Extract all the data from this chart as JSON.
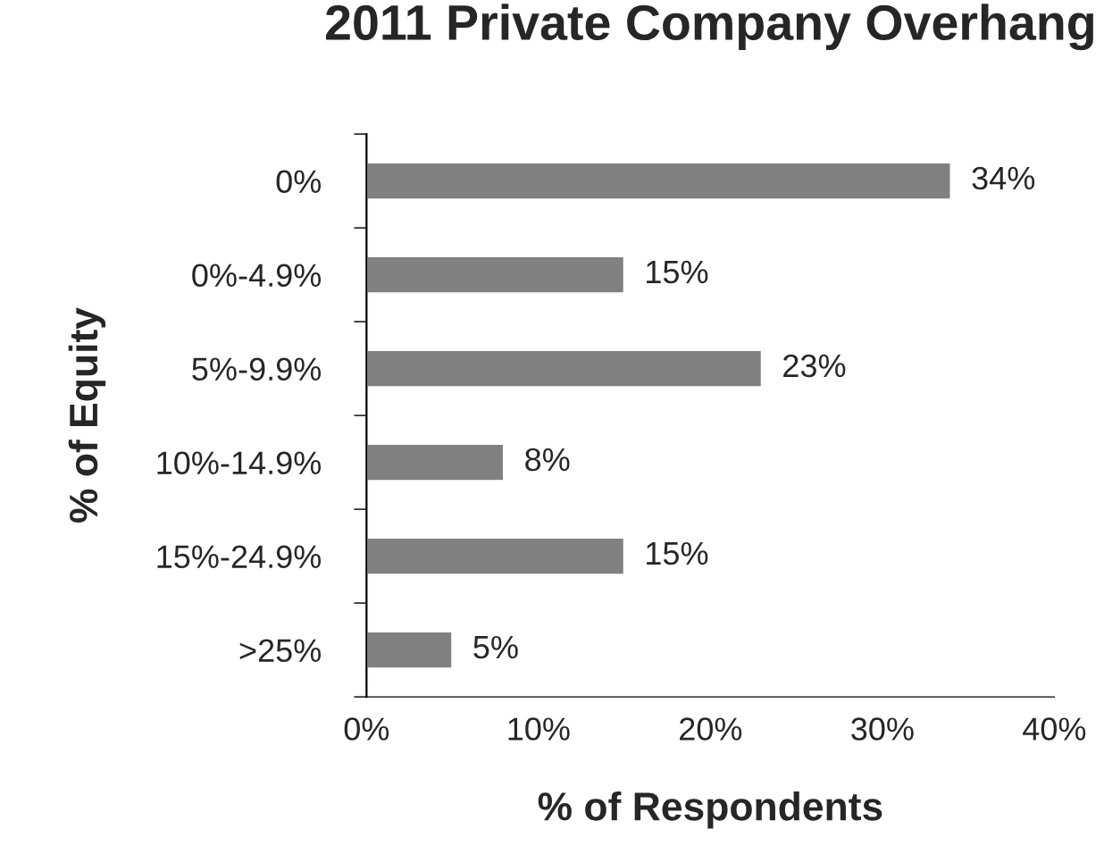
{
  "chart_data": {
    "type": "bar",
    "orientation": "horizontal",
    "title": "2011 Private Company Overhang",
    "xlabel": "% of Respondents",
    "ylabel": "% of Equity",
    "categories": [
      "0%",
      "0%-4.9%",
      "5%-9.9%",
      "10%-14.9%",
      "15%-24.9%",
      ">25%"
    ],
    "values": [
      34,
      15,
      23,
      8,
      15,
      5
    ],
    "value_labels": [
      "34%",
      "15%",
      "23%",
      "8%",
      "15%",
      "5%"
    ],
    "color": "#808080",
    "xlim": [
      0,
      40
    ],
    "xticks": [
      {
        "value": 0,
        "label": "0%"
      },
      {
        "value": 10,
        "label": "10%"
      },
      {
        "value": 20,
        "label": "20%"
      },
      {
        "value": 30,
        "label": "30%"
      },
      {
        "value": 40,
        "label": "40%"
      }
    ],
    "grid": false,
    "legend": false
  }
}
